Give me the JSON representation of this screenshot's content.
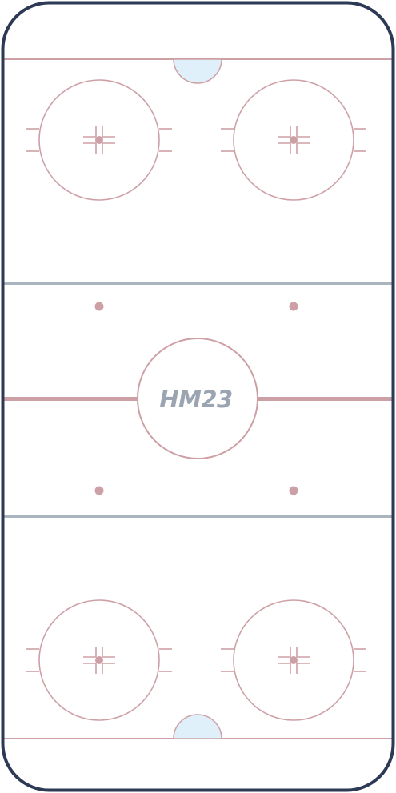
{
  "rink": {
    "center_logo_text": "HM23",
    "colors": {
      "board": "#2d3a55",
      "ice": "#ffffff",
      "red_line": "#cda0a6",
      "marking": "#cda0a6",
      "blue_line": "#a9b4be",
      "crease_fill": "#dff0fa",
      "logo": "#9aa5b1"
    },
    "faceoff_circles": [
      {
        "name": "faceoff-circle-top-left"
      },
      {
        "name": "faceoff-circle-top-right"
      },
      {
        "name": "faceoff-circle-bottom-left"
      },
      {
        "name": "faceoff-circle-bottom-right"
      }
    ],
    "neutral_dots": [
      {
        "name": "faceoff-dot-neutral-top-left"
      },
      {
        "name": "faceoff-dot-neutral-top-right"
      },
      {
        "name": "faceoff-dot-neutral-bottom-left"
      },
      {
        "name": "faceoff-dot-neutral-bottom-right"
      }
    ]
  }
}
